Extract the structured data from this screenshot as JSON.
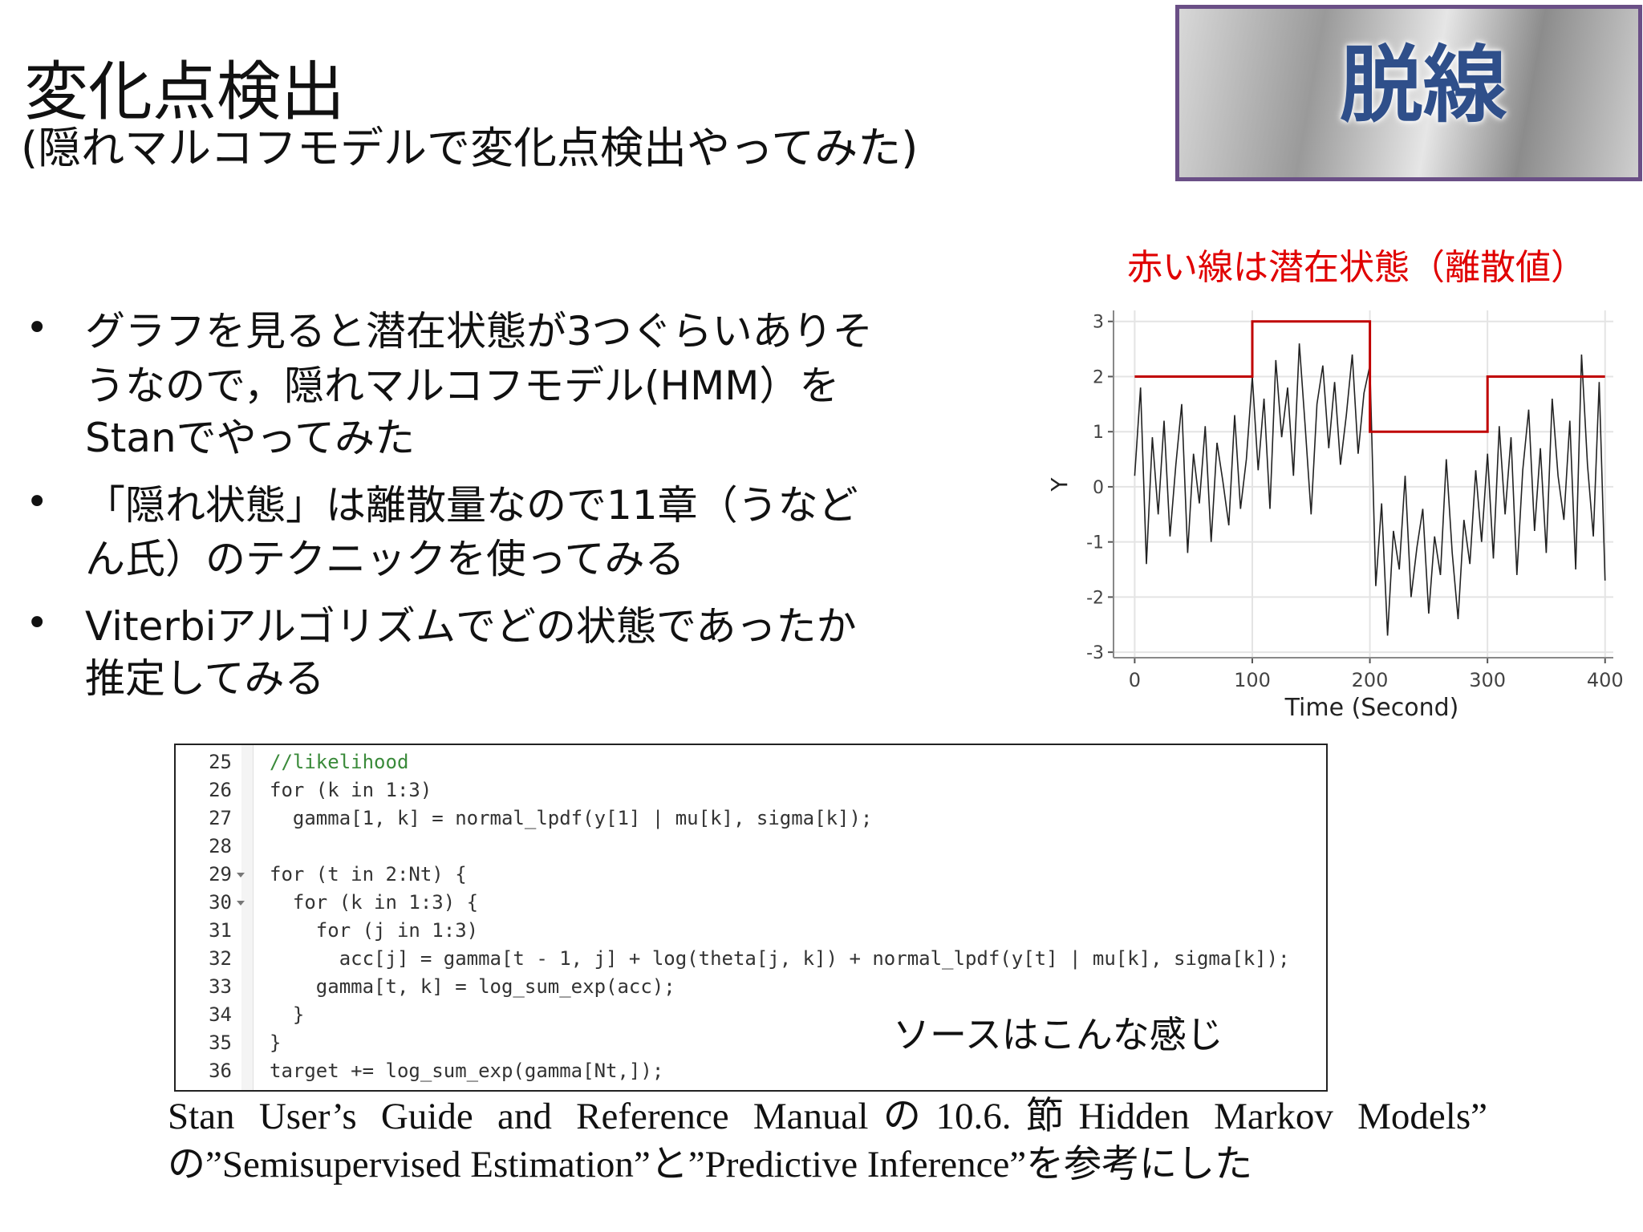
{
  "header": {
    "title": "変化点検出",
    "subtitle": "(隠れマルコフモデルで変化点検出やってみた)"
  },
  "banner": {
    "text": "脱線"
  },
  "bullets": [
    [
      "グラフを見ると潜在状態が3つぐらいありそ",
      "うなので，隠れマルコフモデル(HMM）を",
      "Stanでやってみた"
    ],
    [
      "「隠れ状態」は離散量なので11章（うなど",
      "ん氏）のテクニックを使ってみる"
    ],
    [
      "Viterbiアルゴリズムでどの状態であったか",
      "推定してみる"
    ]
  ],
  "chart_data": {
    "type": "line",
    "title": "赤い線は潜在状態（離散値）",
    "xlabel": "Time (Second)",
    "ylabel": "Y",
    "xlim": [
      -18,
      407
    ],
    "ylim": [
      -3.1,
      3.2
    ],
    "xticks": [
      0,
      100,
      200,
      300,
      400
    ],
    "yticks": [
      -3,
      -2,
      -1,
      0,
      1,
      2,
      3
    ],
    "grid": true,
    "x": [
      0,
      5,
      10,
      15,
      20,
      25,
      30,
      35,
      40,
      45,
      50,
      55,
      60,
      65,
      70,
      75,
      80,
      85,
      90,
      95,
      100,
      105,
      110,
      115,
      120,
      125,
      130,
      135,
      140,
      145,
      150,
      155,
      160,
      165,
      170,
      175,
      180,
      185,
      190,
      195,
      200,
      205,
      210,
      215,
      220,
      225,
      230,
      235,
      240,
      245,
      250,
      255,
      260,
      265,
      270,
      275,
      280,
      285,
      290,
      295,
      300,
      305,
      310,
      315,
      320,
      325,
      330,
      335,
      340,
      345,
      350,
      355,
      360,
      365,
      370,
      375,
      380,
      385,
      390,
      395,
      400
    ],
    "series": [
      {
        "color": "#222222",
        "values": [
          0.2,
          1.8,
          -1.4,
          0.9,
          -0.5,
          1.2,
          -0.9,
          0.4,
          1.5,
          -1.2,
          0.6,
          -0.3,
          1.1,
          -1.0,
          0.8,
          0.1,
          -0.7,
          1.3,
          -0.4,
          0.5,
          2.0,
          0.3,
          1.6,
          -0.4,
          2.3,
          0.9,
          1.8,
          0.2,
          2.6,
          1.1,
          -0.5,
          1.5,
          2.2,
          0.7,
          1.9,
          0.4,
          1.3,
          2.4,
          0.6,
          1.7,
          2.2,
          -1.8,
          -0.3,
          -2.7,
          -0.8,
          -1.5,
          0.2,
          -2.0,
          -1.1,
          -0.4,
          -2.3,
          -0.9,
          -1.6,
          0.5,
          -1.2,
          -2.4,
          -0.6,
          -1.4,
          0.3,
          -1.0,
          0.6,
          -1.3,
          1.1,
          -0.5,
          0.9,
          -1.6,
          0.3,
          1.4,
          -0.8,
          0.7,
          -1.2,
          1.6,
          0.2,
          -0.6,
          1.2,
          -1.5,
          2.4,
          0.4,
          -0.9,
          1.9,
          -1.7
        ]
      },
      {
        "color": "#c00000",
        "x": [
          0,
          100,
          100,
          200,
          200,
          300,
          300,
          400
        ],
        "values": [
          2,
          2,
          3,
          3,
          1,
          1,
          2,
          2
        ]
      }
    ]
  },
  "code": {
    "lines": [
      {
        "number": 25,
        "text": "//likelihood",
        "comment": true
      },
      {
        "number": 26,
        "text": "for (k in 1:3)"
      },
      {
        "number": 27,
        "text": "  gamma[1, k] = normal_lpdf(y[1] | mu[k], sigma[k]);"
      },
      {
        "number": 28,
        "text": ""
      },
      {
        "number": 29,
        "text": "for (t in 2:Nt) {",
        "fold": true
      },
      {
        "number": 30,
        "text": "  for (k in 1:3) {",
        "fold": true
      },
      {
        "number": 31,
        "text": "    for (j in 1:3)"
      },
      {
        "number": 32,
        "text": "      acc[j] = gamma[t - 1, j] + log(theta[j, k]) + normal_lpdf(y[t] | mu[k], sigma[k]);"
      },
      {
        "number": 33,
        "text": "    gamma[t, k] = log_sum_exp(acc);"
      },
      {
        "number": 34,
        "text": "  }"
      },
      {
        "number": 35,
        "text": "}"
      },
      {
        "number": 36,
        "text": "target += log_sum_exp(gamma[Nt,]);"
      }
    ],
    "note": "ソースはこんな感じ"
  },
  "footer": [
    "Stan User’s Guide and Reference Manualの10.6.節Hidden Markov Models”",
    "の”Semisupervised Estimation”と”Predictive Inference”を参考にした"
  ]
}
